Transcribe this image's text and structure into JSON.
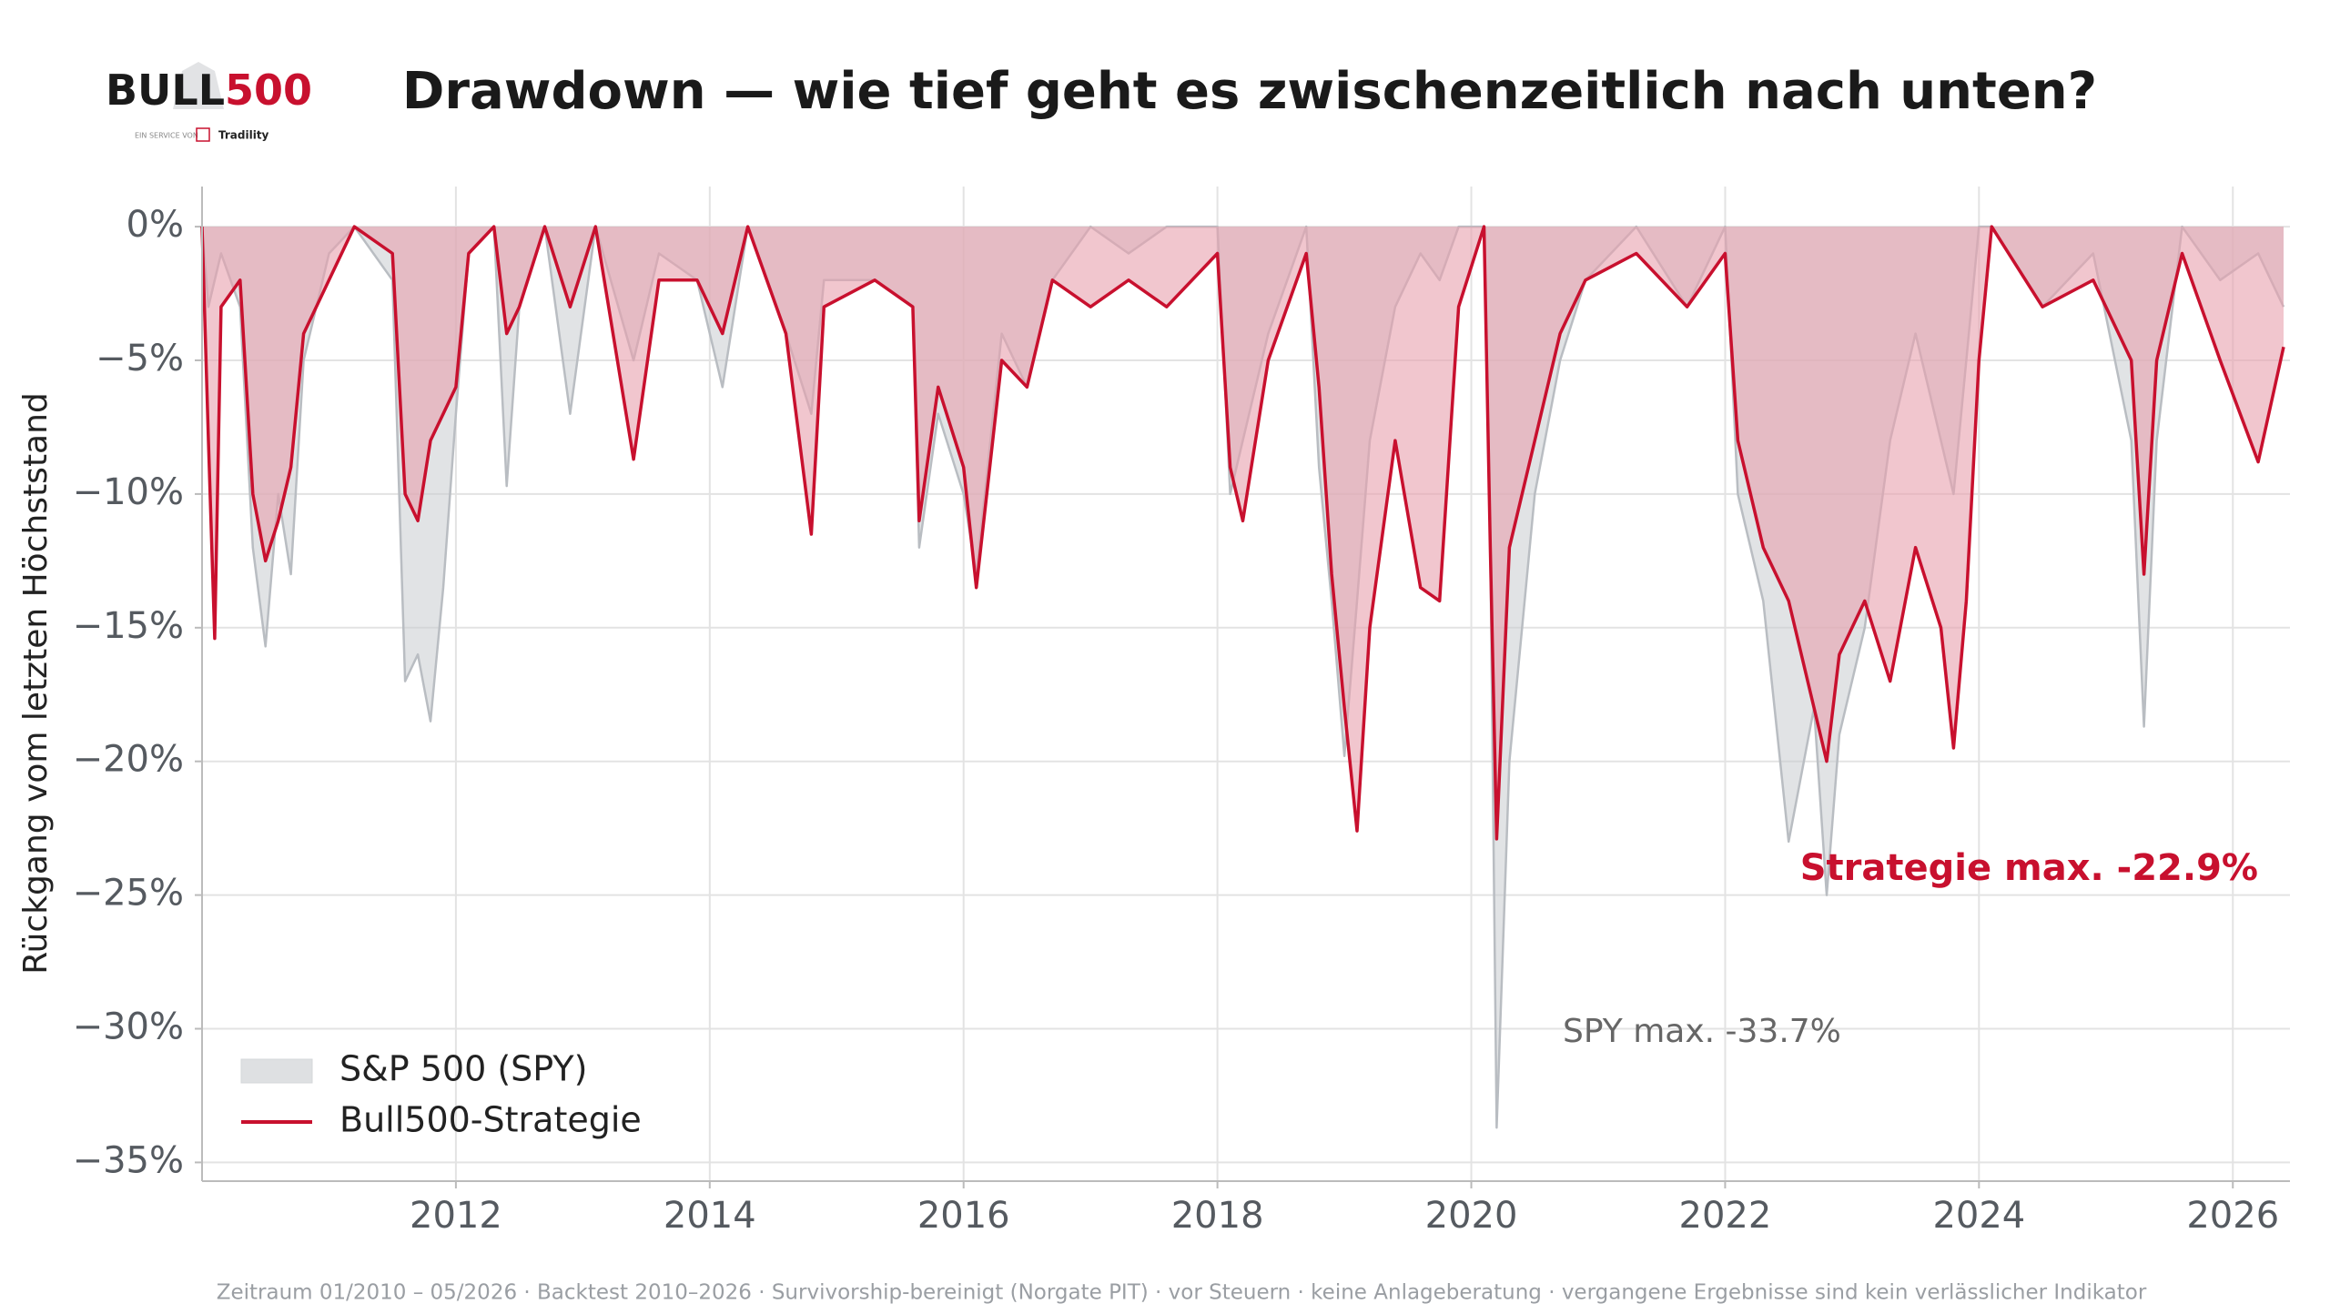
{
  "logo": {
    "brand": "BULL",
    "brand_number": "500",
    "tagline": "EIN SERVICE VON",
    "partner": "Tradility"
  },
  "chart_data": {
    "type": "area-line",
    "title": "Drawdown — wie tief geht es zwischenzeitlich nach unten?",
    "y_label": "Rückgang vom letzten Höchststand",
    "footer": "Zeitraum 01/2010 – 05/2026  ·  Backtest 2010–2026 · Survivorship-bereinigt (Norgate PIT) · vor Steuern · keine Anlageberatung · vergangene Ergebnisse sind kein verlässlicher Indikator",
    "annotations": [
      {
        "text": "Strategie max. -22.9%",
        "color": "#c8102e"
      },
      {
        "text": "SPY max. -33.7%",
        "color": "#666666"
      }
    ],
    "xlim": [
      2010.0,
      2026.45
    ],
    "xticks": [
      2012,
      2014,
      2016,
      2018,
      2020,
      2022,
      2024,
      2026
    ],
    "ylim": [
      -35.7,
      1.5
    ],
    "yticks": [
      {
        "value": 0,
        "label": "0%"
      },
      {
        "value": -5,
        "label": "−5%"
      },
      {
        "value": -10,
        "label": "−10%"
      },
      {
        "value": -15,
        "label": "−15%"
      },
      {
        "value": -20,
        "label": "−20%"
      },
      {
        "value": -25,
        "label": "−25%"
      },
      {
        "value": -30,
        "label": "−30%"
      },
      {
        "value": -35,
        "label": "−35%"
      }
    ],
    "grid": true,
    "legend": "lower left",
    "x": [
      2010.0,
      2010.05,
      2010.1,
      2010.15,
      2010.3,
      2010.4,
      2010.5,
      2010.6,
      2010.7,
      2010.8,
      2011.0,
      2011.2,
      2011.5,
      2011.6,
      2011.7,
      2011.8,
      2011.9,
      2012.0,
      2012.1,
      2012.3,
      2012.4,
      2012.5,
      2012.7,
      2012.9,
      2013.1,
      2013.4,
      2013.6,
      2013.9,
      2014.1,
      2014.3,
      2014.6,
      2014.8,
      2014.9,
      2015.3,
      2015.6,
      2015.65,
      2015.8,
      2016.0,
      2016.1,
      2016.3,
      2016.5,
      2016.7,
      2017.0,
      2017.3,
      2017.6,
      2018.0,
      2018.1,
      2018.2,
      2018.4,
      2018.7,
      2018.8,
      2018.9,
      2019.0,
      2019.1,
      2019.2,
      2019.4,
      2019.6,
      2019.75,
      2019.9,
      2020.1,
      2020.15,
      2020.2,
      2020.3,
      2020.5,
      2020.7,
      2020.9,
      2021.3,
      2021.7,
      2022.0,
      2022.1,
      2022.3,
      2022.5,
      2022.7,
      2022.8,
      2022.9,
      2023.1,
      2023.3,
      2023.5,
      2023.7,
      2023.8,
      2023.9,
      2024.0,
      2024.1,
      2024.5,
      2024.9,
      2025.2,
      2025.3,
      2025.4,
      2025.6,
      2025.9,
      2026.2,
      2026.4
    ],
    "series": [
      {
        "name": "S&P 500 (SPY)",
        "color": "#b9bdc2",
        "fill": "#c9ccd0",
        "values": [
          0,
          -3,
          -2,
          -1,
          -3,
          -12,
          -15.7,
          -10,
          -13,
          -5,
          -1,
          0,
          -2,
          -17,
          -16,
          -18.5,
          -13.5,
          -7,
          -1,
          0,
          -9.7,
          -3,
          0,
          -7,
          0,
          -5,
          -1,
          -2,
          -6,
          0,
          -4,
          -7,
          -2,
          -2,
          -3,
          -12,
          -7,
          -10,
          -13,
          -4,
          -6,
          -2,
          0,
          -1,
          0,
          0,
          -10,
          -8,
          -4,
          0,
          -9,
          -14,
          -19.8,
          -14,
          -8,
          -3,
          -1,
          -2,
          0,
          0,
          -12,
          -33.7,
          -20,
          -10,
          -5,
          -2,
          0,
          -3,
          0,
          -10,
          -14,
          -23,
          -18,
          -25,
          -19,
          -15,
          -8,
          -4,
          -8,
          -10,
          -5,
          0,
          0,
          -3,
          -1,
          -8,
          -18.7,
          -8,
          0,
          -2,
          -1,
          -3
        ]
      },
      {
        "name": "Bull500-Strategie",
        "color": "#c8102e",
        "fill": "#e8a0ad",
        "values": [
          0,
          -8,
          -15.4,
          -3,
          -2,
          -10,
          -12.5,
          -11,
          -9,
          -4,
          -2,
          0,
          -1,
          -10,
          -11,
          -8,
          -7,
          -6,
          -1,
          0,
          -4,
          -3,
          0,
          -3,
          0,
          -8.7,
          -2,
          -2,
          -4,
          0,
          -4,
          -11.5,
          -3,
          -2,
          -3,
          -11,
          -6,
          -9,
          -13.5,
          -5,
          -6,
          -2,
          -3,
          -2,
          -3,
          -1,
          -9,
          -11,
          -5,
          -1,
          -6,
          -13,
          -18,
          -22.6,
          -15,
          -8,
          -13.5,
          -14,
          -3,
          0,
          -12,
          -22.9,
          -12,
          -8,
          -4,
          -2,
          -1,
          -3,
          -1,
          -8,
          -12,
          -14,
          -18,
          -20,
          -16,
          -14,
          -17,
          -12,
          -15,
          -19.5,
          -14,
          -5,
          0,
          -3,
          -2,
          -5,
          -13,
          -5,
          -1,
          -5,
          -8.8,
          -4.5
        ]
      }
    ]
  }
}
